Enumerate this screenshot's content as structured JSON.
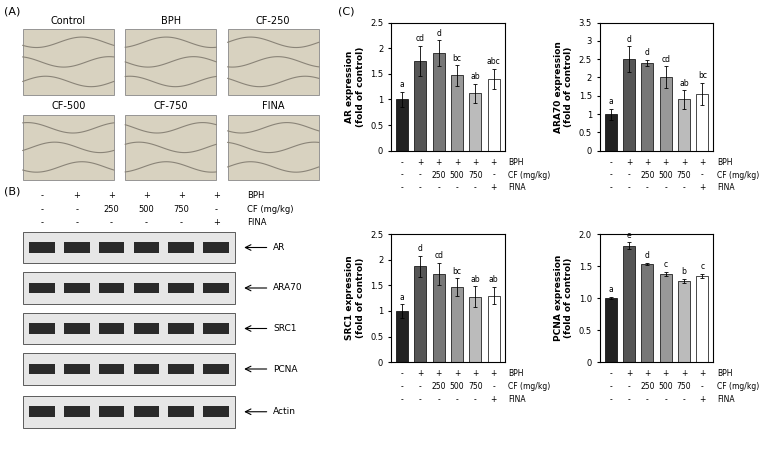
{
  "panel_labels": [
    "(A)",
    "(B)",
    "(C)"
  ],
  "micrographs": [
    "Control",
    "BPH",
    "CF-250",
    "CF-500",
    "CF-750",
    "FINA"
  ],
  "blot": {
    "treatments": [
      {
        "label": "BPH",
        "values": [
          "-",
          "+",
          "+",
          "+",
          "+",
          "+"
        ]
      },
      {
        "label": "CF (mg/kg)",
        "values": [
          "-",
          "-",
          "250",
          "500",
          "750",
          "-"
        ]
      },
      {
        "label": "FINA",
        "values": [
          "-",
          "-",
          "-",
          "-",
          "-",
          "+"
        ]
      }
    ],
    "bands": [
      "AR",
      "ARA70",
      "SRC1",
      "PCNA",
      "Actin"
    ]
  },
  "chart_data": [
    {
      "type": "bar",
      "ylabel": "AR expression\n(fold of control)",
      "categories": [
        null,
        null,
        null,
        null,
        null,
        null
      ],
      "values": [
        1.0,
        1.75,
        1.9,
        1.47,
        1.12,
        1.4
      ],
      "errors": [
        0.15,
        0.3,
        0.25,
        0.2,
        0.18,
        0.2
      ],
      "letters": [
        "a",
        "cd",
        "d",
        "bc",
        "ab",
        "abc"
      ],
      "colors": [
        "#222222",
        "#555555",
        "#777777",
        "#999999",
        "#bbbbbb",
        "#ffffff"
      ],
      "ylim": [
        0,
        2.5
      ],
      "yticks": [
        0,
        0.5,
        1,
        1.5,
        2,
        2.5
      ],
      "tick_labels": "y",
      "treatments": [
        {
          "label": "BPH",
          "values": [
            "-",
            "+",
            "+",
            "+",
            "+",
            "+"
          ]
        },
        {
          "label": "CF (mg/kg)",
          "values": [
            "-",
            "-",
            "250",
            "500",
            "750",
            "-"
          ]
        },
        {
          "label": "FINA",
          "values": [
            "-",
            "-",
            "-",
            "-",
            "-",
            "+"
          ]
        }
      ]
    },
    {
      "type": "bar",
      "ylabel": "ARA70 expression\n(fold of control)",
      "categories": [
        null,
        null,
        null,
        null,
        null,
        null
      ],
      "values": [
        1.0,
        2.5,
        2.4,
        2.0,
        1.4,
        1.55
      ],
      "errors": [
        0.15,
        0.35,
        0.08,
        0.3,
        0.25,
        0.3
      ],
      "letters": [
        "a",
        "d",
        "d",
        "cd",
        "ab",
        "bc"
      ],
      "colors": [
        "#222222",
        "#555555",
        "#777777",
        "#999999",
        "#bbbbbb",
        "#ffffff"
      ],
      "ylim": [
        0,
        3.5
      ],
      "yticks": [
        0,
        0.5,
        1,
        1.5,
        2,
        2.5,
        3,
        3.5
      ],
      "tick_labels": "y",
      "treatments": [
        {
          "label": "BPH",
          "values": [
            "-",
            "+",
            "+",
            "+",
            "+",
            "+"
          ]
        },
        {
          "label": "CF (mg/kg)",
          "values": [
            "-",
            "-",
            "250",
            "500",
            "750",
            "-"
          ]
        },
        {
          "label": "FINA",
          "values": [
            "-",
            "-",
            "-",
            "-",
            "-",
            "+"
          ]
        }
      ]
    },
    {
      "type": "bar",
      "ylabel": "SRC1 expression\n(fold of control)",
      "categories": [
        null,
        null,
        null,
        null,
        null,
        null
      ],
      "values": [
        1.0,
        1.87,
        1.72,
        1.47,
        1.28,
        1.3
      ],
      "errors": [
        0.13,
        0.2,
        0.22,
        0.17,
        0.2,
        0.17
      ],
      "letters": [
        "a",
        "d",
        "cd",
        "bc",
        "ab",
        "ab"
      ],
      "colors": [
        "#222222",
        "#555555",
        "#777777",
        "#999999",
        "#bbbbbb",
        "#ffffff"
      ],
      "ylim": [
        0,
        2.5
      ],
      "yticks": [
        0,
        0.5,
        1,
        1.5,
        2,
        2.5
      ],
      "tick_labels": "y",
      "treatments": [
        {
          "label": "BPH",
          "values": [
            "-",
            "+",
            "+",
            "+",
            "+",
            "+"
          ]
        },
        {
          "label": "CF (mg/kg)",
          "values": [
            "-",
            "-",
            "250",
            "500",
            "750",
            "-"
          ]
        },
        {
          "label": "FINA",
          "values": [
            "-",
            "-",
            "-",
            "-",
            "-",
            "+"
          ]
        }
      ]
    },
    {
      "type": "bar",
      "ylabel": "PCNA expression\n(fold of control)",
      "categories": [
        null,
        null,
        null,
        null,
        null,
        null
      ],
      "values": [
        1.0,
        1.82,
        1.53,
        1.38,
        1.27,
        1.35
      ],
      "errors": [
        0.02,
        0.05,
        0.02,
        0.03,
        0.03,
        0.03
      ],
      "letters": [
        "a",
        "e",
        "d",
        "c",
        "b",
        "c"
      ],
      "colors": [
        "#222222",
        "#555555",
        "#777777",
        "#999999",
        "#bbbbbb",
        "#ffffff"
      ],
      "ylim": [
        0,
        2.0
      ],
      "yticks": [
        0,
        {
          "value": 0.5,
          "label": "0.5"
        },
        {
          "value": 1.0,
          "label": "1.0"
        },
        {
          "value": 1.5,
          "label": "1.5"
        },
        {
          "value": 2.0,
          "label": "2.0"
        }
      ],
      "tick_labels": "y",
      "treatments": [
        {
          "label": "BPH",
          "values": [
            "-",
            "+",
            "+",
            "+",
            "+",
            "+"
          ]
        },
        {
          "label": "CF (mg/kg)",
          "values": [
            "-",
            "-",
            "250",
            "500",
            "750",
            "-"
          ]
        },
        {
          "label": "FINA",
          "values": [
            "-",
            "-",
            "-",
            "-",
            "-",
            "+"
          ]
        }
      ]
    }
  ]
}
